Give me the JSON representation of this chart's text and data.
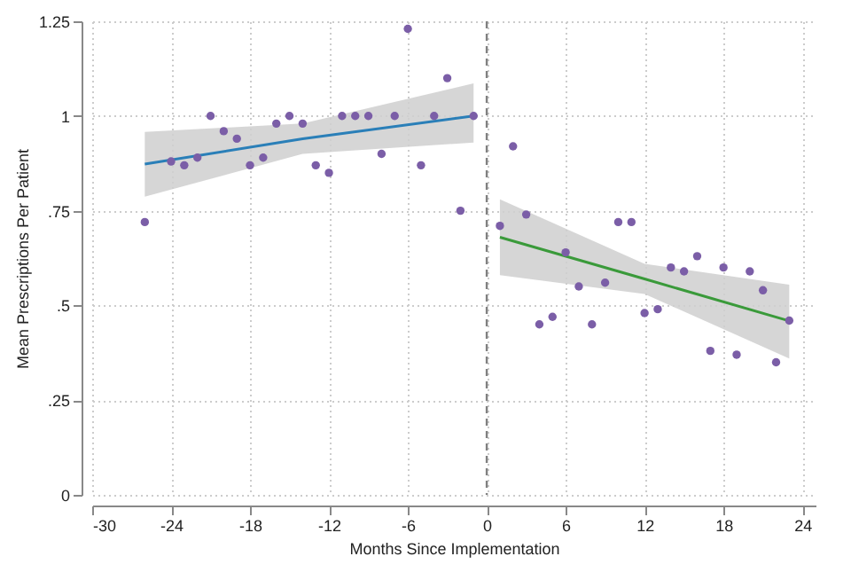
{
  "chart_data": {
    "type": "scatter",
    "xlabel": "Months Since Implementation",
    "ylabel": "Mean Prescriptions Per Patient",
    "xlim": [
      -30,
      25
    ],
    "xticks": [
      -30,
      -24,
      -18,
      -12,
      -6,
      0,
      6,
      12,
      18,
      24
    ],
    "ylim": [
      0,
      1.25
    ],
    "yticks": [
      0,
      {
        "value": 0.25,
        "label": ".25"
      },
      {
        "value": 0.5,
        "label": ".5"
      },
      {
        "value": 0.75,
        "label": ".75"
      },
      1,
      1.25
    ],
    "grid": true,
    "ref_lines": [
      {
        "axis": "x",
        "value": 0,
        "color": "#808080",
        "line_style": "dashed"
      }
    ],
    "series": [
      {
        "type": "line",
        "color": "#2a7fb8",
        "x": [
          -26,
          -14,
          -1
        ],
        "values": [
          0.873,
          0.94,
          1.0
        ],
        "lower": [
          0.787,
          0.9,
          0.93
        ],
        "upper": [
          0.958,
          0.98,
          1.086
        ],
        "marker": "none"
      },
      {
        "type": "line",
        "color": "#3a9a3a",
        "x": [
          1,
          12,
          23
        ],
        "values": [
          0.68,
          0.57,
          0.459
        ],
        "lower": [
          0.58,
          0.53,
          0.36
        ],
        "upper": [
          0.78,
          0.61,
          0.555
        ],
        "marker": "none"
      },
      {
        "color": "#7b5ea7",
        "marker": "circle",
        "x": [
          -26,
          -24,
          -23,
          -22,
          -21,
          -20,
          -19,
          -18,
          -17,
          -16,
          -15,
          -14,
          -13,
          -12,
          -11,
          -10,
          -9,
          -8,
          -7,
          -6,
          -5,
          -4,
          -3,
          -2,
          -1
        ],
        "values": [
          0.72,
          0.88,
          0.87,
          0.89,
          1.0,
          0.96,
          0.94,
          0.87,
          0.89,
          0.98,
          1.0,
          0.98,
          0.87,
          0.85,
          1.0,
          1.0,
          1.0,
          0.9,
          1.0,
          1.23,
          0.87,
          1.0,
          1.1,
          0.75,
          1.0
        ]
      },
      {
        "color": "#7b5ea7",
        "marker": "circle",
        "x": [
          1,
          2,
          3,
          4,
          5,
          6,
          7,
          8,
          9,
          10,
          11,
          12,
          13,
          14,
          15,
          16,
          17,
          18,
          19,
          20,
          21,
          22,
          23
        ],
        "values": [
          0.71,
          0.92,
          0.74,
          0.45,
          0.47,
          0.64,
          0.55,
          0.45,
          0.56,
          0.72,
          0.72,
          0.48,
          0.49,
          0.6,
          0.59,
          0.63,
          0.38,
          0.6,
          0.37,
          0.59,
          0.54,
          0.35,
          0.46
        ]
      }
    ]
  }
}
